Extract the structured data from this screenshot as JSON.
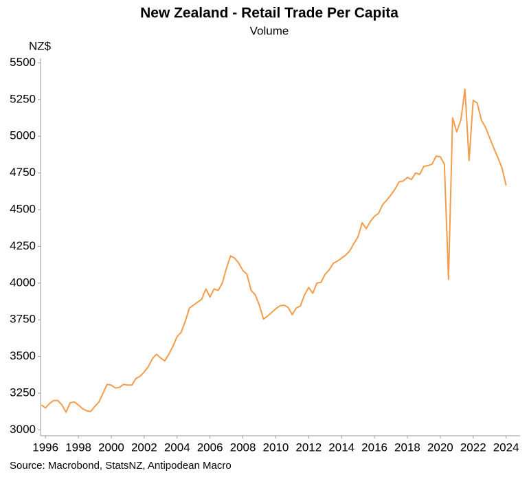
{
  "chart_data": {
    "type": "line",
    "title": "New Zealand - Retail Trade Per Capita",
    "subtitle": "Volume",
    "y_label": "NZ$",
    "source": "Source: Macrobond, StatsNZ, Antipodean Macro",
    "x": [
      1995.75,
      1996,
      1996.25,
      1996.5,
      1996.75,
      1997,
      1997.25,
      1997.5,
      1997.75,
      1998,
      1998.25,
      1998.5,
      1998.75,
      1999,
      1999.25,
      1999.5,
      1999.75,
      2000,
      2000.25,
      2000.5,
      2000.75,
      2001,
      2001.25,
      2001.5,
      2001.75,
      2002,
      2002.25,
      2002.5,
      2002.75,
      2003,
      2003.25,
      2003.5,
      2003.75,
      2004,
      2004.25,
      2004.5,
      2004.75,
      2005,
      2005.25,
      2005.5,
      2005.75,
      2006,
      2006.25,
      2006.5,
      2006.75,
      2007,
      2007.25,
      2007.5,
      2007.75,
      2008,
      2008.25,
      2008.5,
      2008.75,
      2009,
      2009.25,
      2009.5,
      2009.75,
      2010,
      2010.25,
      2010.5,
      2010.75,
      2011,
      2011.25,
      2011.5,
      2011.75,
      2012,
      2012.25,
      2012.5,
      2012.75,
      2013,
      2013.25,
      2013.5,
      2013.75,
      2014,
      2014.25,
      2014.5,
      2014.75,
      2015,
      2015.25,
      2015.5,
      2015.75,
      2016,
      2016.25,
      2016.5,
      2016.75,
      2017,
      2017.25,
      2017.5,
      2017.75,
      2018,
      2018.25,
      2018.5,
      2018.75,
      2019,
      2019.25,
      2019.5,
      2019.75,
      2020,
      2020.25,
      2020.5,
      2020.75,
      2021,
      2021.25,
      2021.5,
      2021.75,
      2022,
      2022.25,
      2022.5,
      2022.75,
      2023,
      2023.25,
      2023.5,
      2023.75,
      2024
    ],
    "series": [
      {
        "name": "Retail Trade Per Capita",
        "color": "#f39c4a",
        "values": [
          3170,
          3150,
          3180,
          3200,
          3200,
          3170,
          3120,
          3185,
          3190,
          3170,
          3145,
          3130,
          3125,
          3160,
          3190,
          3250,
          3310,
          3305,
          3285,
          3290,
          3310,
          3305,
          3305,
          3350,
          3365,
          3395,
          3430,
          3485,
          3515,
          3490,
          3470,
          3515,
          3570,
          3635,
          3665,
          3740,
          3830,
          3850,
          3870,
          3890,
          3960,
          3905,
          3960,
          3950,
          4000,
          4100,
          4185,
          4170,
          4135,
          4085,
          4060,
          3950,
          3920,
          3850,
          3755,
          3775,
          3800,
          3825,
          3845,
          3850,
          3835,
          3785,
          3830,
          3845,
          3920,
          3970,
          3930,
          4000,
          4005,
          4060,
          4090,
          4135,
          4150,
          4170,
          4190,
          4220,
          4270,
          4315,
          4410,
          4370,
          4420,
          4455,
          4475,
          4535,
          4565,
          4600,
          4640,
          4690,
          4695,
          4720,
          4705,
          4750,
          4740,
          4795,
          4800,
          4810,
          4865,
          4860,
          4810,
          4025,
          5125,
          5030,
          5110,
          5320,
          4835,
          5245,
          5225,
          5110,
          5060,
          4990,
          4920,
          4855,
          4785,
          4665
        ]
      }
    ],
    "xlim": [
      1995.7,
      2024.85
    ],
    "xticks": [
      1996,
      1998,
      2000,
      2002,
      2004,
      2006,
      2008,
      2010,
      2012,
      2014,
      2016,
      2018,
      2020,
      2022,
      2024
    ],
    "ylim": [
      2960,
      5530
    ],
    "yticks": [
      3000,
      3250,
      3500,
      3750,
      4000,
      4250,
      4500,
      4750,
      5000,
      5250,
      5500
    ],
    "grid": false
  }
}
